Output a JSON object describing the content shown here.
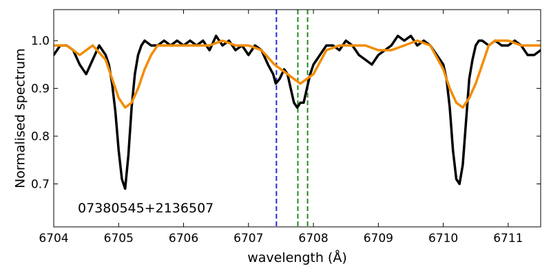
{
  "chart_data": {
    "type": "line",
    "title": "",
    "xlabel": "wavelength (Å)",
    "ylabel": "Normalised spectrum",
    "xlim": [
      6704.0,
      6711.5
    ],
    "ylim": [
      0.61,
      1.065
    ],
    "x_ticks": [
      6704,
      6705,
      6706,
      6707,
      6708,
      6709,
      6710,
      6711
    ],
    "y_ticks": [
      0.7,
      0.8,
      0.9,
      1.0
    ],
    "y_tick_labels": [
      "0.7",
      "0.8",
      "0.9",
      "1.0"
    ],
    "grid": false,
    "annotation": "07380545+2136507",
    "series": [
      {
        "color": "#000000",
        "x": [
          6704.0,
          6704.1,
          6704.2,
          6704.3,
          6704.4,
          6704.5,
          6704.6,
          6704.7,
          6704.8,
          6704.85,
          6704.9,
          6704.95,
          6705.0,
          6705.05,
          6705.1,
          6705.15,
          6705.2,
          6705.25,
          6705.3,
          6705.35,
          6705.4,
          6705.5,
          6705.6,
          6705.7,
          6705.8,
          6705.9,
          6706.0,
          6706.1,
          6706.2,
          6706.3,
          6706.4,
          6706.5,
          6706.6,
          6706.7,
          6706.8,
          6706.9,
          6707.0,
          6707.1,
          6707.2,
          6707.3,
          6707.38,
          6707.42,
          6707.48,
          6707.55,
          6707.6,
          6707.65,
          6707.7,
          6707.75,
          6707.8,
          6707.85,
          6707.9,
          6707.95,
          6708.0,
          6708.1,
          6708.2,
          6708.3,
          6708.4,
          6708.5,
          6708.6,
          6708.7,
          6708.8,
          6708.9,
          6709.0,
          6709.1,
          6709.2,
          6709.3,
          6709.4,
          6709.5,
          6709.6,
          6709.7,
          6709.8,
          6709.9,
          6710.0,
          6710.05,
          6710.1,
          6710.15,
          6710.2,
          6710.25,
          6710.3,
          6710.35,
          6710.4,
          6710.45,
          6710.5,
          6710.55,
          6710.6,
          6710.7,
          6710.8,
          6710.9,
          6711.0,
          6711.1,
          6711.2,
          6711.3,
          6711.4,
          6711.5
        ],
        "y": [
          0.97,
          0.99,
          0.99,
          0.98,
          0.95,
          0.93,
          0.96,
          0.99,
          0.97,
          0.95,
          0.91,
          0.85,
          0.77,
          0.71,
          0.69,
          0.76,
          0.86,
          0.93,
          0.97,
          0.99,
          1.0,
          0.99,
          0.99,
          1.0,
          0.99,
          1.0,
          0.99,
          1.0,
          0.99,
          1.0,
          0.98,
          1.01,
          0.99,
          1.0,
          0.98,
          0.99,
          0.97,
          0.99,
          0.98,
          0.95,
          0.93,
          0.91,
          0.92,
          0.94,
          0.93,
          0.9,
          0.87,
          0.86,
          0.87,
          0.87,
          0.9,
          0.93,
          0.95,
          0.97,
          0.99,
          0.99,
          0.98,
          1.0,
          0.99,
          0.97,
          0.96,
          0.95,
          0.97,
          0.98,
          0.99,
          1.01,
          1.0,
          1.01,
          0.99,
          1.0,
          0.99,
          0.97,
          0.95,
          0.92,
          0.86,
          0.77,
          0.71,
          0.7,
          0.74,
          0.83,
          0.92,
          0.96,
          0.99,
          1.0,
          1.0,
          0.99,
          1.0,
          0.99,
          0.99,
          1.0,
          0.99,
          0.97,
          0.97,
          0.98
        ]
      },
      {
        "color": "#f28c00",
        "x": [
          6704.0,
          6704.2,
          6704.4,
          6704.6,
          6704.8,
          6704.9,
          6705.0,
          6705.1,
          6705.2,
          6705.3,
          6705.4,
          6705.5,
          6705.6,
          6705.8,
          6706.0,
          6706.2,
          6706.4,
          6706.6,
          6706.8,
          6707.0,
          6707.2,
          6707.4,
          6707.6,
          6707.8,
          6708.0,
          6708.2,
          6708.4,
          6708.6,
          6708.8,
          6709.0,
          6709.2,
          6709.4,
          6709.6,
          6709.8,
          6710.0,
          6710.1,
          6710.2,
          6710.3,
          6710.4,
          6710.5,
          6710.6,
          6710.7,
          6710.8,
          6711.0,
          6711.2,
          6711.4,
          6711.5
        ],
        "y": [
          0.99,
          0.99,
          0.97,
          0.99,
          0.96,
          0.92,
          0.88,
          0.86,
          0.87,
          0.9,
          0.94,
          0.97,
          0.99,
          0.99,
          0.99,
          0.99,
          0.99,
          1.0,
          0.99,
          0.99,
          0.98,
          0.95,
          0.93,
          0.91,
          0.93,
          0.98,
          0.99,
          0.99,
          0.99,
          0.98,
          0.98,
          0.99,
          1.0,
          0.99,
          0.94,
          0.9,
          0.87,
          0.86,
          0.88,
          0.91,
          0.95,
          0.99,
          1.0,
          1.0,
          0.99,
          0.99,
          0.99
        ]
      }
    ],
    "vlines": [
      {
        "x": 6707.43,
        "color": "#1f2bd6",
        "style": "dashed"
      },
      {
        "x": 6707.76,
        "color": "#1e8c1e",
        "style": "dashed"
      },
      {
        "x": 6707.91,
        "color": "#1e8c1e",
        "style": "dashed"
      }
    ]
  }
}
